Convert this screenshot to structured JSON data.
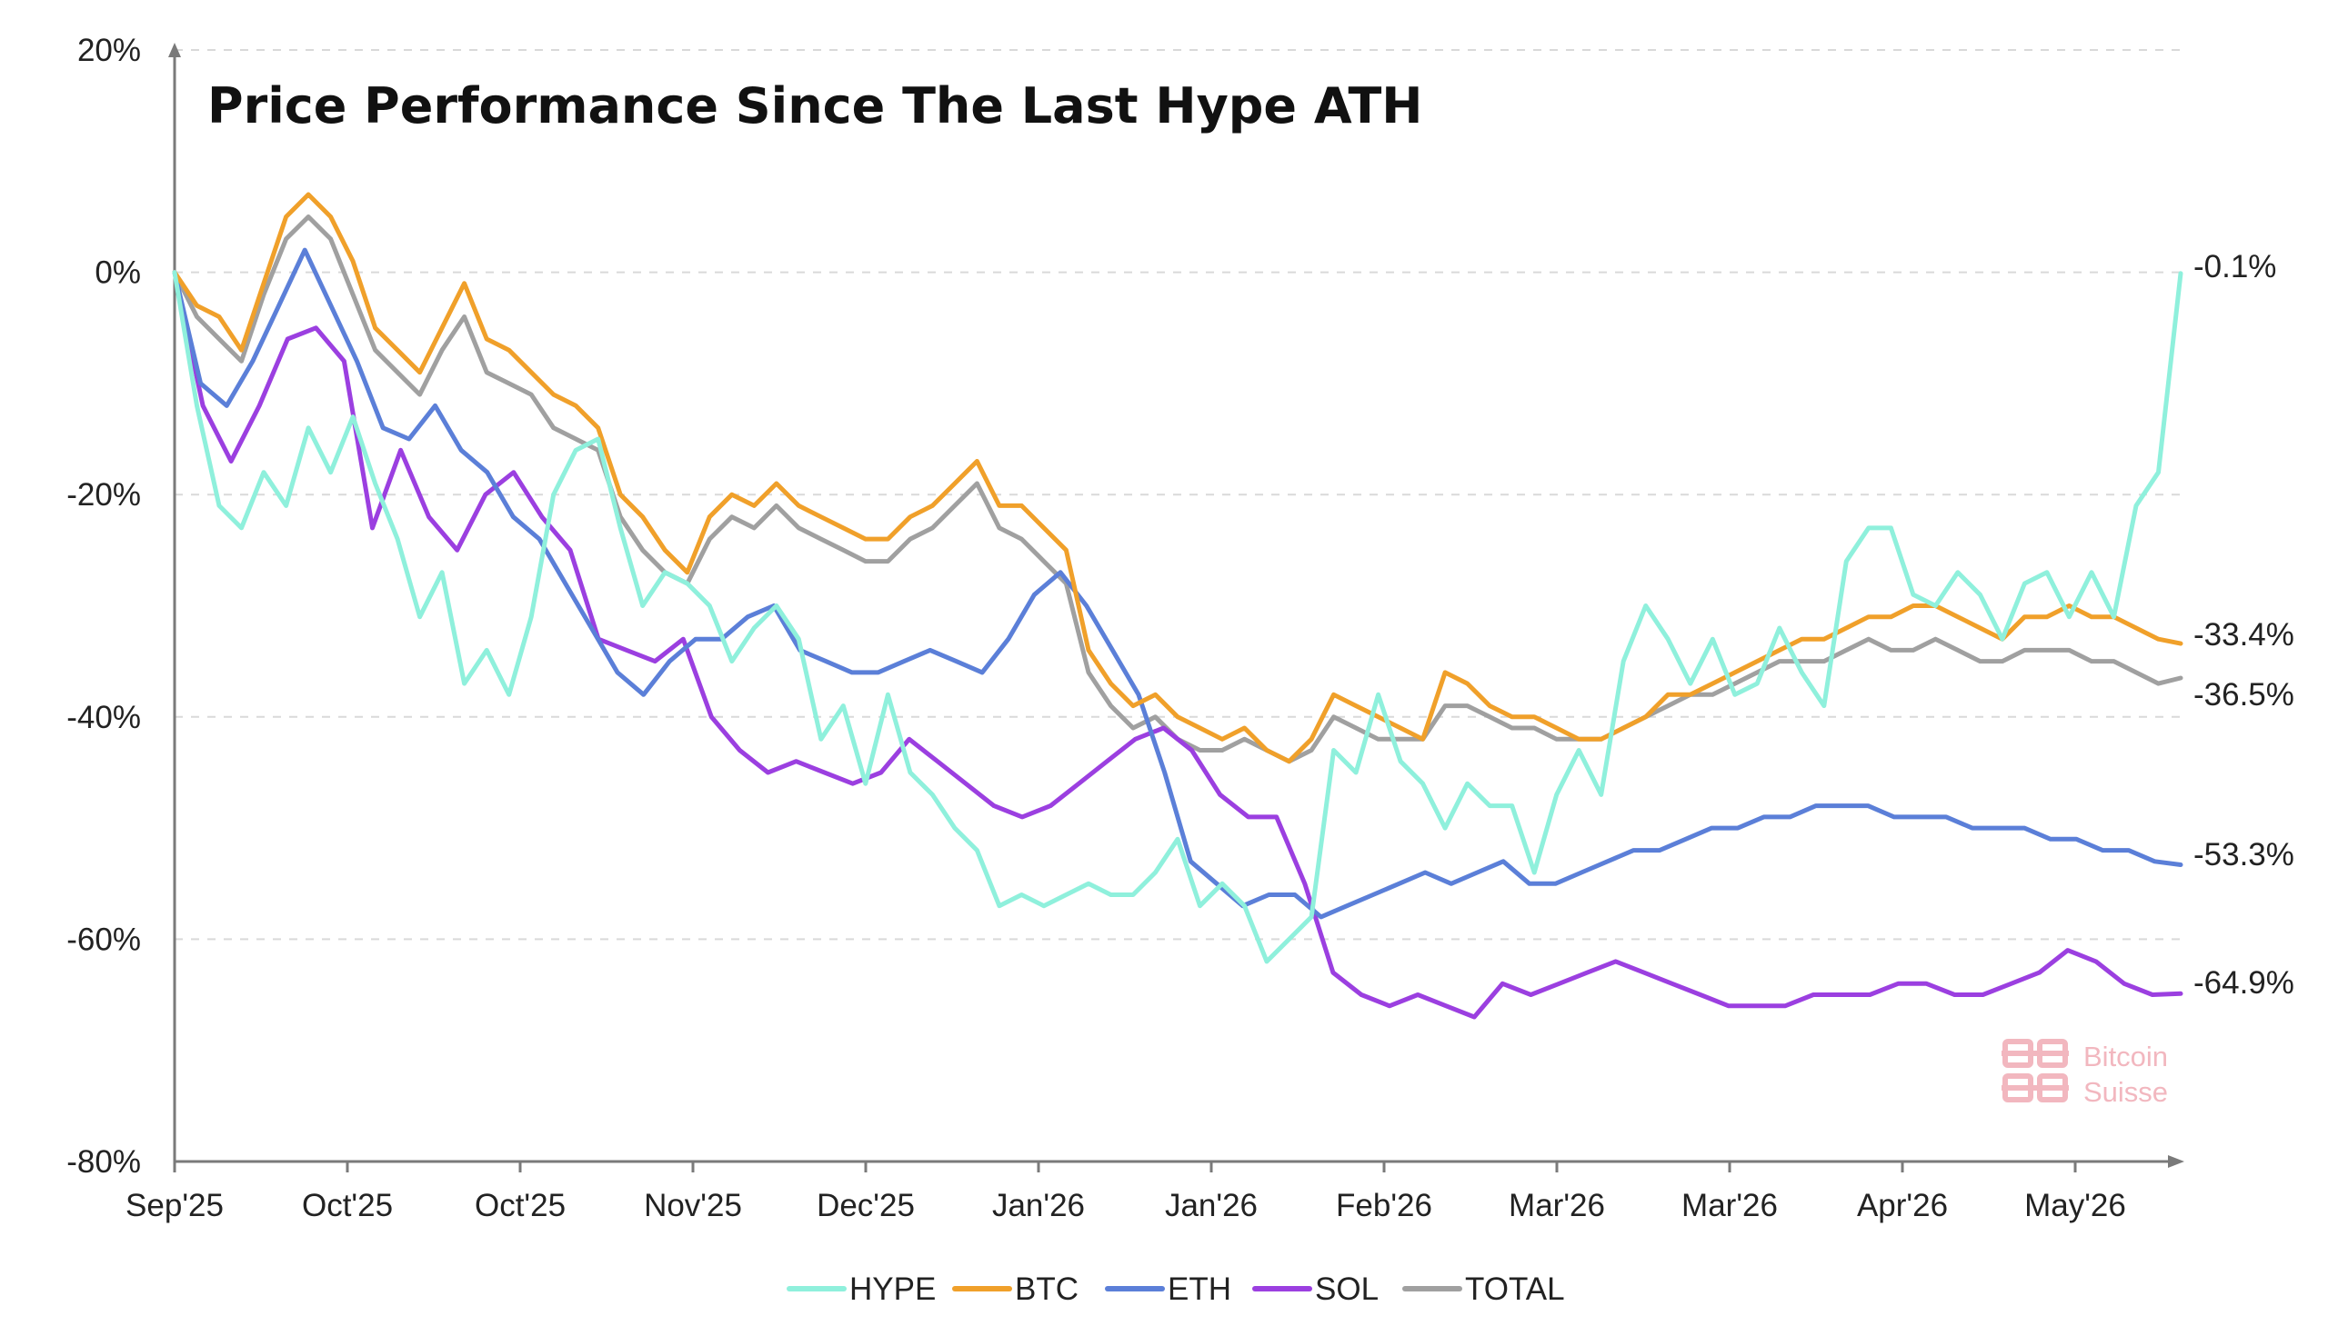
{
  "chart_data": {
    "type": "line",
    "title": "Price Performance Since The Last Hype ATH",
    "xlabel": "",
    "ylabel": "",
    "ylim": [
      -80,
      20
    ],
    "y_ticks": [
      "20%",
      "0%",
      "-20%",
      "-40%",
      "-60%",
      "-80%"
    ],
    "y_tick_values": [
      20,
      0,
      -20,
      -40,
      -60,
      -80
    ],
    "x_ticks": [
      "Sep'25",
      "Oct'25",
      "Oct'25",
      "Nov'25",
      "Dec'25",
      "Jan'26",
      "Jan'26",
      "Feb'26",
      "Mar'26",
      "Mar'26",
      "Apr'26",
      "May'26"
    ],
    "grid": "horizontal dashed",
    "legend": "bottom",
    "series": [
      {
        "name": "HYPE",
        "color": "#8ff0dc",
        "end_label": "-0.1%",
        "values": [
          0,
          -12,
          -21,
          -23,
          -18,
          -21,
          -14,
          -18,
          -13,
          -19,
          -24,
          -31,
          -27,
          -37,
          -34,
          -38,
          -31,
          -20,
          -16,
          -15,
          -23,
          -30,
          -27,
          -28,
          -30,
          -35,
          -32,
          -30,
          -33,
          -42,
          -39,
          -46,
          -38,
          -45,
          -47,
          -50,
          -52,
          -57,
          -56,
          -57,
          -56,
          -55,
          -56,
          -56,
          -54,
          -51,
          -57,
          -55,
          -57,
          -62,
          -60,
          -58,
          -43,
          -45,
          -38,
          -44,
          -46,
          -50,
          -46,
          -48,
          -48,
          -54,
          -47,
          -43,
          -47,
          -35,
          -30,
          -33,
          -37,
          -33,
          -38,
          -37,
          -32,
          -36,
          -39,
          -26,
          -23,
          -23,
          -29,
          -30,
          -27,
          -29,
          -33,
          -28,
          -27,
          -31,
          -27,
          -31,
          -21,
          -18,
          -0.1
        ]
      },
      {
        "name": "BTC",
        "color": "#f0a02a",
        "end_label": "-33.4%",
        "values": [
          0,
          -3,
          -4,
          -7,
          -1,
          5,
          7,
          5,
          1,
          -5,
          -7,
          -9,
          -5,
          -1,
          -6,
          -7,
          -9,
          -11,
          -12,
          -14,
          -20,
          -22,
          -25,
          -27,
          -22,
          -20,
          -21,
          -19,
          -21,
          -22,
          -23,
          -24,
          -24,
          -22,
          -21,
          -19,
          -17,
          -21,
          -21,
          -23,
          -25,
          -34,
          -37,
          -39,
          -38,
          -40,
          -41,
          -42,
          -41,
          -43,
          -44,
          -42,
          -38,
          -39,
          -40,
          -41,
          -42,
          -36,
          -37,
          -39,
          -40,
          -40,
          -41,
          -42,
          -42,
          -41,
          -40,
          -38,
          -38,
          -37,
          -36,
          -35,
          -34,
          -33,
          -33,
          -32,
          -31,
          -31,
          -30,
          -30,
          -31,
          -32,
          -33,
          -31,
          -31,
          -30,
          -31,
          -31,
          -32,
          -33,
          -33.4
        ]
      },
      {
        "name": "ETH",
        "color": "#5b7fd8",
        "end_label": "-53.3%",
        "values": [
          0,
          -10,
          -12,
          -8,
          -3,
          2,
          -3,
          -8,
          -14,
          -15,
          -12,
          -16,
          -18,
          -22,
          -24,
          -28,
          -32,
          -36,
          -38,
          -35,
          -33,
          -33,
          -31,
          -30,
          -34,
          -35,
          -36,
          -36,
          -35,
          -34,
          -35,
          -36,
          -33,
          -29,
          -27,
          -30,
          -34,
          -38,
          -45,
          -53,
          -55,
          -57,
          -56,
          -56,
          -58,
          -57,
          -56,
          -55,
          -54,
          -55,
          -54,
          -53,
          -55,
          -55,
          -54,
          -53,
          -52,
          -52,
          -51,
          -50,
          -50,
          -49,
          -49,
          -48,
          -48,
          -48,
          -49,
          -49,
          -49,
          -50,
          -50,
          -50,
          -51,
          -51,
          -52,
          -52,
          -53,
          -53.3
        ]
      },
      {
        "name": "SOL",
        "color": "#9b3fe0",
        "end_label": "-64.9%",
        "values": [
          0,
          -12,
          -17,
          -12,
          -6,
          -5,
          -8,
          -23,
          -16,
          -22,
          -25,
          -20,
          -18,
          -22,
          -25,
          -33,
          -34,
          -35,
          -33,
          -40,
          -43,
          -45,
          -44,
          -45,
          -46,
          -45,
          -42,
          -44,
          -46,
          -48,
          -49,
          -48,
          -46,
          -44,
          -42,
          -41,
          -43,
          -47,
          -49,
          -49,
          -55,
          -63,
          -65,
          -66,
          -65,
          -66,
          -67,
          -64,
          -65,
          -64,
          -63,
          -62,
          -63,
          -64,
          -65,
          -66,
          -66,
          -66,
          -65,
          -65,
          -65,
          -64,
          -64,
          -65,
          -65,
          -64,
          -63,
          -61,
          -62,
          -64,
          -65,
          -64.9
        ]
      },
      {
        "name": "TOTAL",
        "color": "#a0a0a0",
        "end_label": "-36.5%",
        "values": [
          0,
          -4,
          -6,
          -8,
          -2,
          3,
          5,
          3,
          -2,
          -7,
          -9,
          -11,
          -7,
          -4,
          -9,
          -10,
          -11,
          -14,
          -15,
          -16,
          -22,
          -25,
          -27,
          -28,
          -24,
          -22,
          -23,
          -21,
          -23,
          -24,
          -25,
          -26,
          -26,
          -24,
          -23,
          -21,
          -19,
          -23,
          -24,
          -26,
          -28,
          -36,
          -39,
          -41,
          -40,
          -42,
          -43,
          -43,
          -42,
          -43,
          -44,
          -43,
          -40,
          -41,
          -42,
          -42,
          -42,
          -39,
          -39,
          -40,
          -41,
          -41,
          -42,
          -42,
          -42,
          -41,
          -40,
          -39,
          -38,
          -38,
          -37,
          -36,
          -35,
          -35,
          -35,
          -34,
          -33,
          -34,
          -34,
          -33,
          -34,
          -35,
          -35,
          -34,
          -34,
          -34,
          -35,
          -35,
          -36,
          -37,
          -36.5
        ]
      }
    ]
  },
  "watermark": {
    "line1": "Bitcoin",
    "line2": "Suisse",
    "color": "#f2b7bf"
  }
}
